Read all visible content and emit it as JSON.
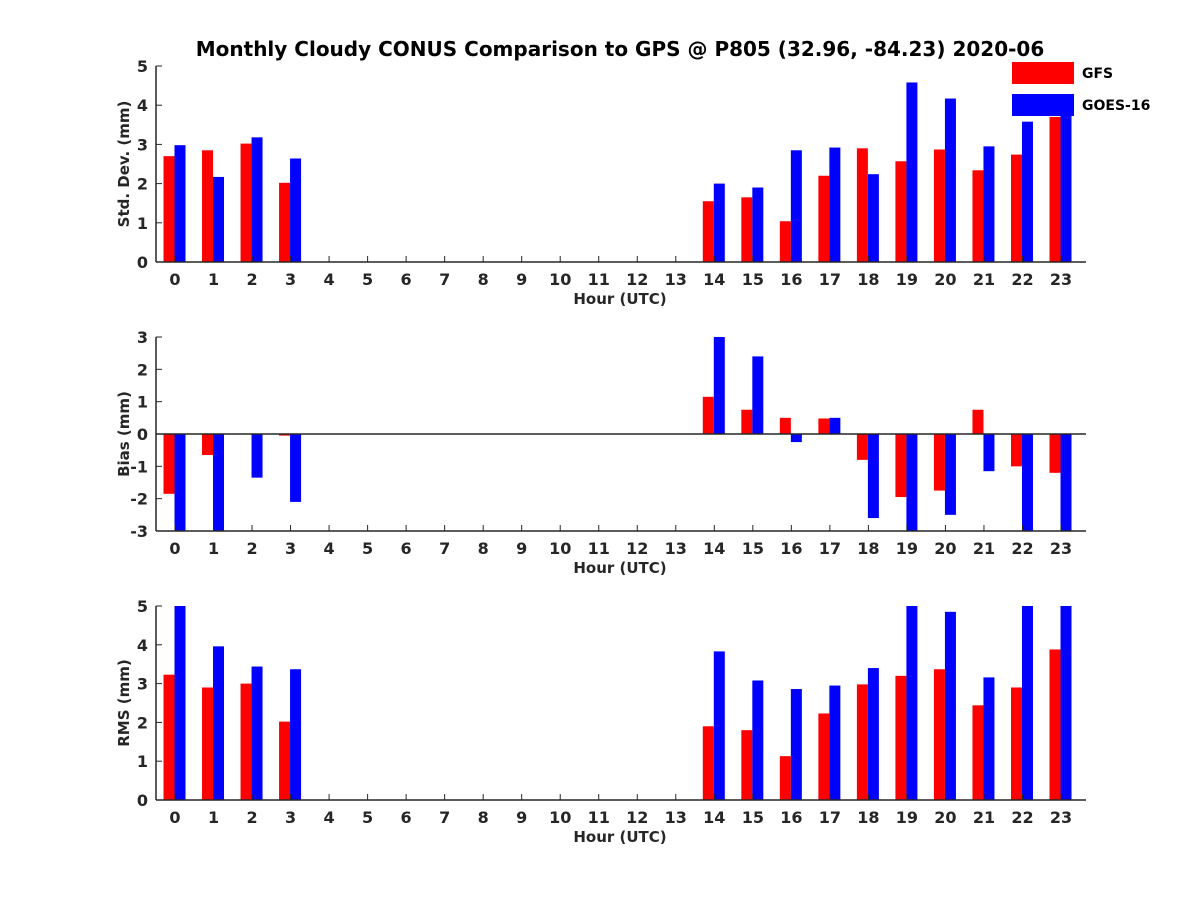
{
  "chart_data": [
    {
      "type": "bar",
      "title": "Monthly Cloudy CONUS Comparison to GPS @ P805 (32.96, -84.23) 2020-06",
      "xlabel": "Hour (UTC)",
      "ylabel": "Std. Dev. (mm)",
      "ylim": [
        0,
        5
      ],
      "yticks": [
        "0",
        "1",
        "2",
        "3",
        "4",
        "5"
      ],
      "categories": [
        "0",
        "1",
        "2",
        "3",
        "4",
        "5",
        "6",
        "7",
        "8",
        "9",
        "10",
        "11",
        "12",
        "13",
        "14",
        "15",
        "16",
        "17",
        "18",
        "19",
        "20",
        "21",
        "22",
        "23"
      ],
      "series": [
        {
          "name": "GFS",
          "color": "#ff0000",
          "values": [
            2.7,
            2.85,
            3.02,
            2.02,
            0,
            0,
            0,
            0,
            0,
            0,
            0,
            0,
            0,
            0,
            1.55,
            1.65,
            1.04,
            2.2,
            2.9,
            2.57,
            2.87,
            2.34,
            2.74,
            3.7
          ]
        },
        {
          "name": "GOES-16",
          "color": "#0000ff",
          "values": [
            2.98,
            2.17,
            3.18,
            2.64,
            0,
            0,
            0,
            0,
            0,
            0,
            0,
            0,
            0,
            0,
            2.0,
            1.9,
            2.85,
            2.92,
            2.24,
            4.58,
            4.17,
            2.95,
            3.58,
            4.1
          ]
        }
      ],
      "legend": "top-right",
      "grid": false
    },
    {
      "type": "bar",
      "xlabel": "Hour (UTC)",
      "ylabel": "Bias (mm)",
      "ylim": [
        -3,
        3
      ],
      "yticks": [
        "-3",
        "-2",
        "-1",
        "0",
        "1",
        "2",
        "3"
      ],
      "categories": [
        "0",
        "1",
        "2",
        "3",
        "4",
        "5",
        "6",
        "7",
        "8",
        "9",
        "10",
        "11",
        "12",
        "13",
        "14",
        "15",
        "16",
        "17",
        "18",
        "19",
        "20",
        "21",
        "22",
        "23"
      ],
      "series": [
        {
          "name": "GFS",
          "color": "#ff0000",
          "values": [
            -1.85,
            -0.65,
            0,
            -0.05,
            0,
            0,
            0,
            0,
            0,
            0,
            0,
            0,
            0,
            0,
            1.15,
            0.75,
            0.5,
            0.48,
            -0.8,
            -1.95,
            -1.75,
            0.75,
            -1.0,
            -1.2
          ]
        },
        {
          "name": "GOES-16",
          "color": "#0000ff",
          "values": [
            -3.0,
            -3.0,
            -1.35,
            -2.1,
            0,
            0,
            0,
            0,
            0,
            0,
            0,
            0,
            0,
            0,
            3.0,
            2.4,
            -0.25,
            0.5,
            -2.6,
            -3.0,
            -2.5,
            -1.15,
            -3.0,
            -3.0
          ]
        }
      ],
      "zero_line": true,
      "grid": false
    },
    {
      "type": "bar",
      "xlabel": "Hour (UTC)",
      "ylabel": "RMS (mm)",
      "ylim": [
        0,
        5
      ],
      "yticks": [
        "0",
        "1",
        "2",
        "3",
        "4",
        "5"
      ],
      "categories": [
        "0",
        "1",
        "2",
        "3",
        "4",
        "5",
        "6",
        "7",
        "8",
        "9",
        "10",
        "11",
        "12",
        "13",
        "14",
        "15",
        "16",
        "17",
        "18",
        "19",
        "20",
        "21",
        "22",
        "23"
      ],
      "series": [
        {
          "name": "GFS",
          "color": "#ff0000",
          "values": [
            3.23,
            2.9,
            3.0,
            2.02,
            0,
            0,
            0,
            0,
            0,
            0,
            0,
            0,
            0,
            0,
            1.9,
            1.8,
            1.13,
            2.23,
            2.98,
            3.2,
            3.37,
            2.44,
            2.9,
            3.88
          ]
        },
        {
          "name": "GOES-16",
          "color": "#0000ff",
          "values": [
            5.0,
            3.96,
            3.44,
            3.37,
            0,
            0,
            0,
            0,
            0,
            0,
            0,
            0,
            0,
            0,
            3.83,
            3.08,
            2.86,
            2.95,
            3.4,
            5.0,
            4.85,
            3.16,
            5.0,
            5.0
          ]
        }
      ],
      "grid": false
    }
  ]
}
